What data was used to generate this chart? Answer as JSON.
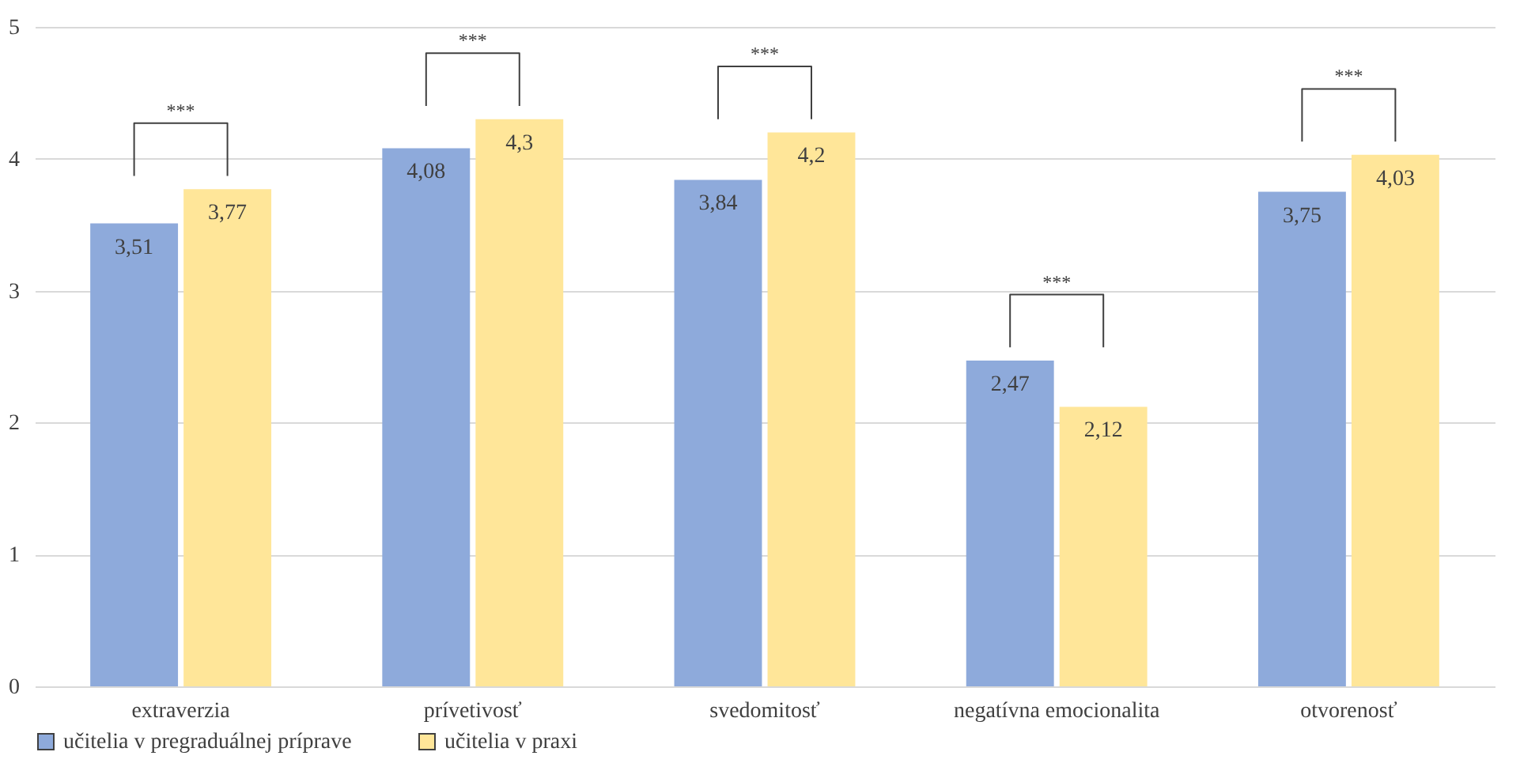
{
  "chart_data": {
    "type": "bar",
    "categories": [
      "extraverzia",
      "prívetivosť",
      "svedomitosť",
      "negatívna emocionalita",
      "otvorenosť"
    ],
    "series": [
      {
        "name": "učitelia v pregraduálnej príprave",
        "color": "#8eaadb",
        "values": [
          3.51,
          4.08,
          3.84,
          2.47,
          3.75
        ],
        "value_labels": [
          "3,51",
          "4,08",
          "3,84",
          "2,47",
          "3,75"
        ]
      },
      {
        "name": "učitelia v praxi",
        "color": "#ffe699",
        "values": [
          3.77,
          4.3,
          4.2,
          2.12,
          4.03
        ],
        "value_labels": [
          "3,77",
          "4,3",
          "4,2",
          "2,12",
          "4,03"
        ]
      }
    ],
    "annotations": [
      "***",
      "***",
      "***",
      "***",
      "***"
    ],
    "ylim": [
      0,
      5
    ],
    "yticks": [
      0,
      1,
      2,
      3,
      4,
      5
    ],
    "grid": "y",
    "legend": "bottom"
  }
}
